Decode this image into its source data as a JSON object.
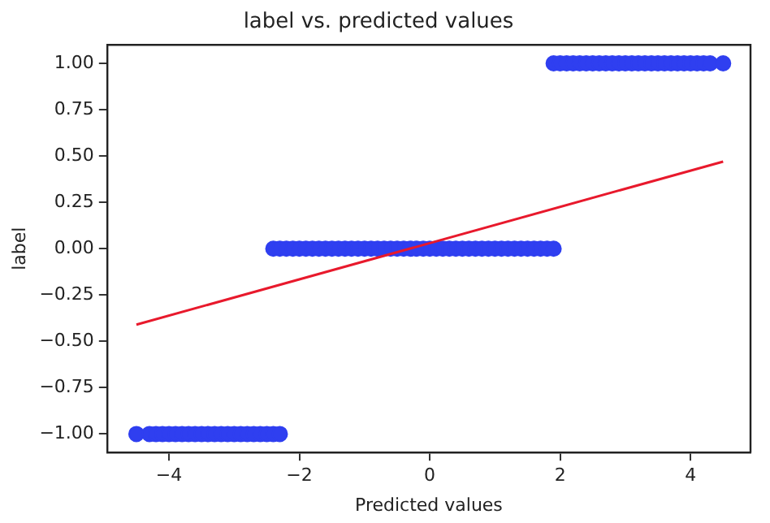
{
  "chart_data": {
    "type": "scatter",
    "title": "label vs. predicted values",
    "xlabel": "Predicted values",
    "ylabel": "label",
    "xlim": [
      -4.95,
      4.92
    ],
    "ylim": [
      -1.1,
      1.1
    ],
    "xticks": [
      {
        "value": -4,
        "label": "−4"
      },
      {
        "value": -2,
        "label": "−2"
      },
      0,
      2,
      4
    ],
    "yticks": [
      {
        "value": -1,
        "label": "−1.00"
      },
      {
        "value": -0.75,
        "label": "−0.75"
      },
      {
        "value": -0.5,
        "label": "−0.50"
      },
      {
        "value": -0.25,
        "label": "−0.25"
      },
      {
        "value": 0,
        "label": "0.00"
      },
      {
        "value": 0.25,
        "label": "0.25"
      },
      {
        "value": 0.5,
        "label": "0.50"
      },
      {
        "value": 0.75,
        "label": "0.75"
      },
      {
        "value": 1,
        "label": "1.00"
      }
    ],
    "grid": false,
    "legend": false,
    "marker": "circle",
    "series": [
      {
        "color": "#2f3ff0",
        "x": [
          -4.5,
          -4.3,
          -4.2,
          -4.1,
          -4.0,
          -3.9,
          -3.8,
          -3.7,
          -3.6,
          -3.5,
          -3.4,
          -3.3,
          -3.2,
          -3.1,
          -3.0,
          -2.9,
          -2.8,
          -2.7,
          -2.6,
          -2.5,
          -2.4,
          -2.3,
          -2.4,
          -2.3,
          -2.2,
          -2.1,
          -2.0,
          -1.9,
          -1.8,
          -1.7,
          -1.6,
          -1.5,
          -1.4,
          -1.3,
          -1.2,
          -1.1,
          -1.0,
          -0.9,
          -0.8,
          -0.7,
          -0.6,
          -0.5,
          -0.4,
          -0.3,
          -0.2,
          -0.1,
          0,
          0.1,
          0.2,
          0.3,
          0.4,
          0.5,
          0.6,
          0.7,
          0.8,
          0.9,
          1.0,
          1.1,
          1.2,
          1.3,
          1.4,
          1.5,
          1.6,
          1.7,
          1.8,
          1.9,
          1.9,
          2.0,
          2.1,
          2.2,
          2.3,
          2.4,
          2.5,
          2.6,
          2.7,
          2.8,
          2.9,
          3.0,
          3.1,
          3.2,
          3.3,
          3.4,
          3.5,
          3.6,
          3.7,
          3.8,
          3.9,
          4.0,
          4.1,
          4.2,
          4.3,
          4.5
        ],
        "values": [
          -1,
          -1,
          -1,
          -1,
          -1,
          -1,
          -1,
          -1,
          -1,
          -1,
          -1,
          -1,
          -1,
          -1,
          -1,
          -1,
          -1,
          -1,
          -1,
          -1,
          -1,
          -1,
          0,
          0,
          0,
          0,
          0,
          0,
          0,
          0,
          0,
          0,
          0,
          0,
          0,
          0,
          0,
          0,
          0,
          0,
          0,
          0,
          0,
          0,
          0,
          0,
          0,
          0,
          0,
          0,
          0,
          0,
          0,
          0,
          0,
          0,
          0,
          0,
          0,
          0,
          0,
          0,
          0,
          0,
          0,
          0,
          1,
          1,
          1,
          1,
          1,
          1,
          1,
          1,
          1,
          1,
          1,
          1,
          1,
          1,
          1,
          1,
          1,
          1,
          1,
          1,
          1,
          1,
          1,
          1,
          1,
          1
        ]
      },
      {
        "type": "line",
        "color": "#e8192c",
        "marker": "none",
        "line_style": "solid",
        "x": [
          -4.5,
          4.5
        ],
        "values": [
          -0.41,
          0.47
        ]
      }
    ]
  }
}
